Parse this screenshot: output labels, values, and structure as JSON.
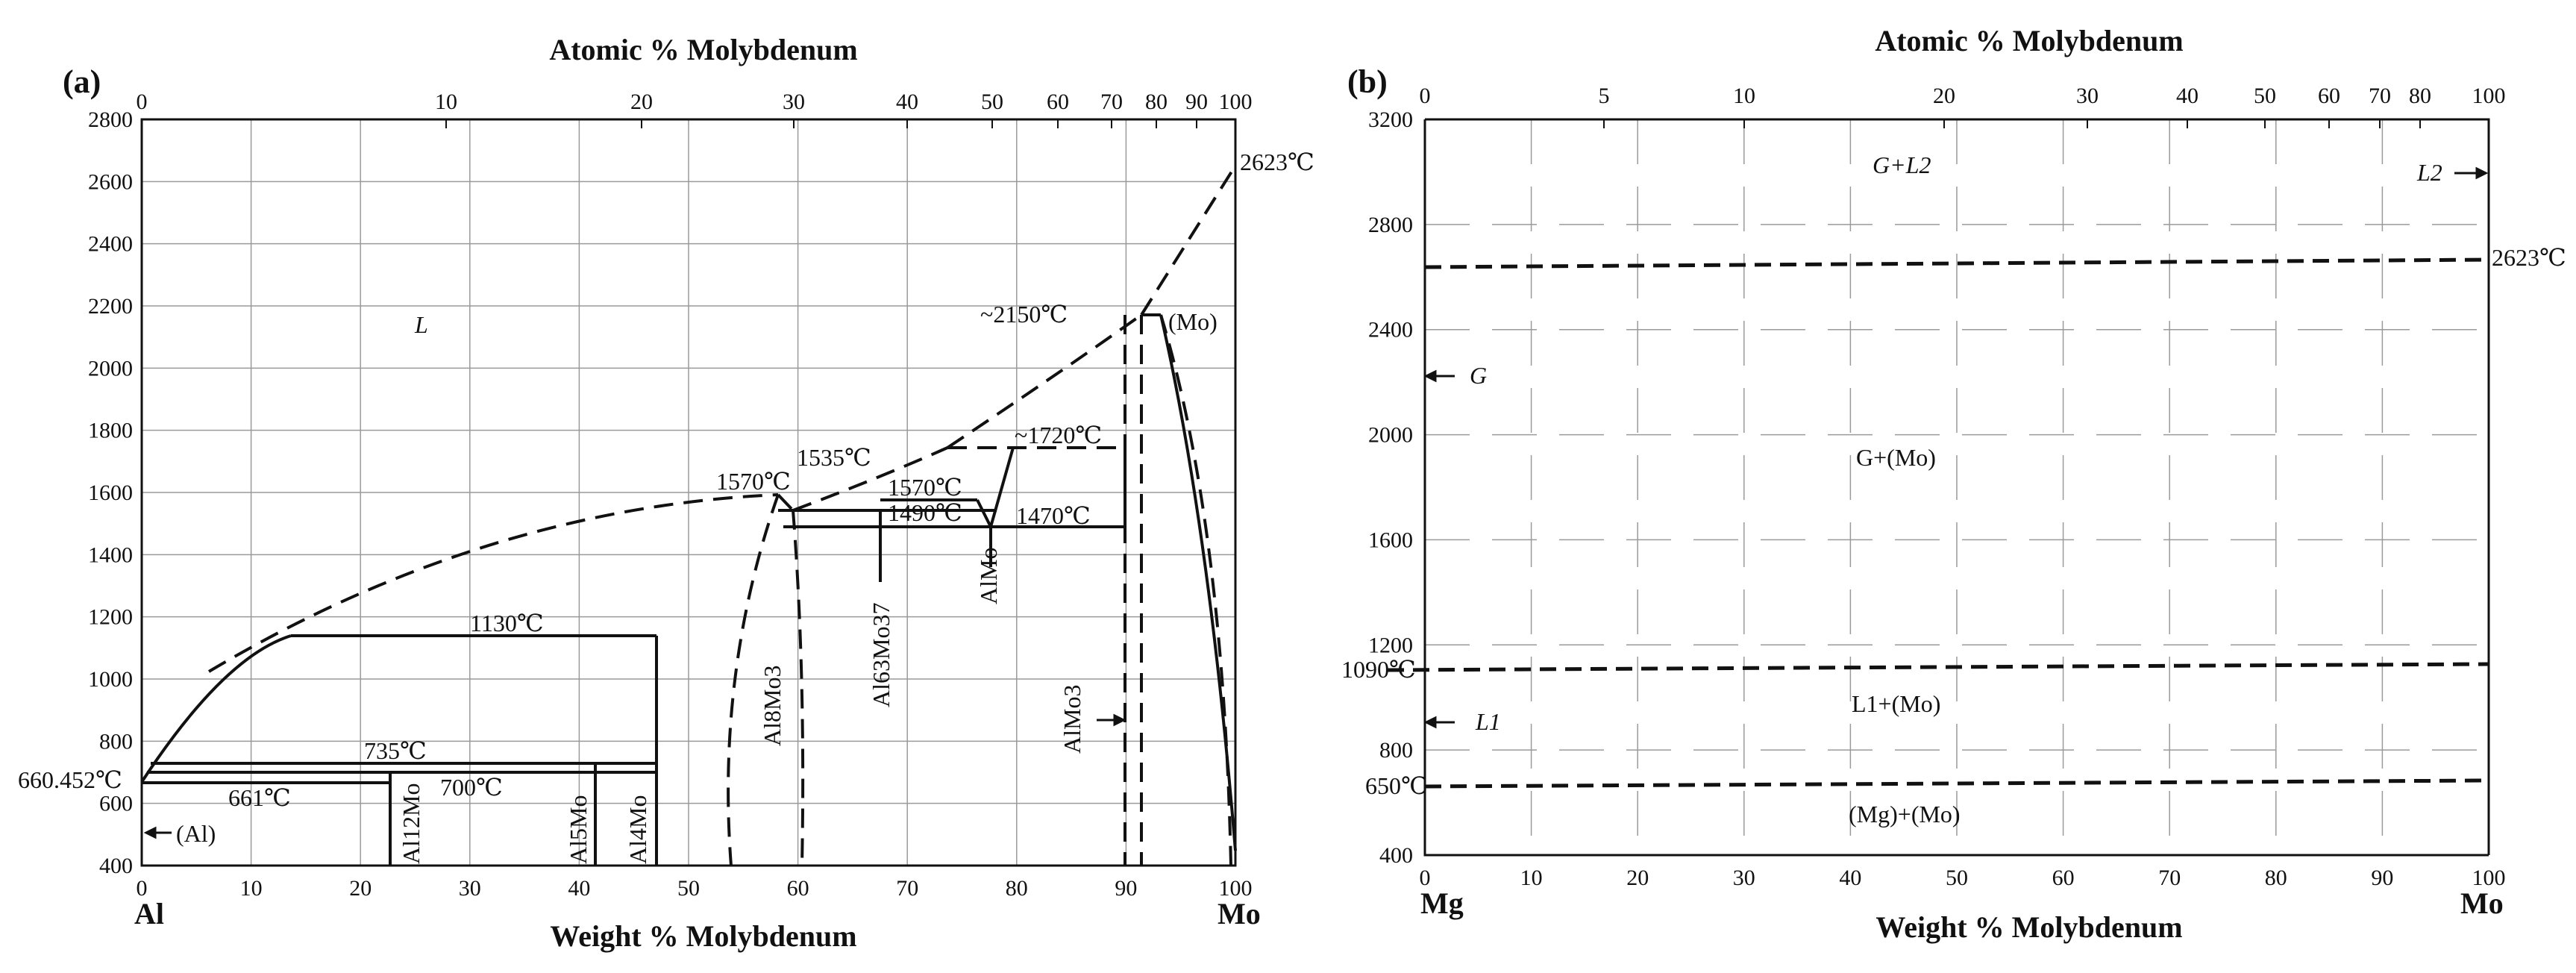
{
  "panel_a": {
    "panel_label": "(a)",
    "top_axis_title": "Atomic % Molybdenum",
    "bottom_axis_title": "Weight % Molybdenum",
    "left_element": "Al",
    "right_element": "Mo",
    "y_ticks": [
      "2800",
      "2600",
      "2400",
      "2200",
      "2000",
      "1800",
      "1600",
      "1400",
      "1200",
      "1000",
      "800",
      "600",
      "400"
    ],
    "x_ticks": [
      "0",
      "10",
      "20",
      "30",
      "40",
      "50",
      "60",
      "70",
      "80",
      "90",
      "100"
    ],
    "top_ticks": [
      "0",
      "10",
      "20",
      "30",
      "40",
      "50",
      "60",
      "70",
      "80",
      "90",
      "100"
    ],
    "labels": {
      "mo_melt": "2623℃",
      "al_melt": "660.452℃",
      "t2150": "~2150℃",
      "mo_phase": "(Mo)",
      "liquid": "L",
      "t1720": "~1720℃",
      "t1570a": "1570℃",
      "t1535": "1535℃",
      "t1570b": "1570℃",
      "t1490": "1490℃",
      "t1470": "1470℃",
      "t1130": "1130℃",
      "t735": "735℃",
      "t700": "700℃",
      "t661": "661℃",
      "al_phase": "(Al)",
      "al12mo": "Al12Mo",
      "al5mo": "Al5Mo",
      "al4mo": "Al4Mo",
      "al8mo3": "Al8Mo3",
      "al63mo37": "Al63Mo37",
      "almo": "AlMo",
      "almo3": "AlMo3"
    }
  },
  "panel_b": {
    "panel_label": "(b)",
    "top_axis_title": "Atomic % Molybdenum",
    "bottom_axis_title": "Weight % Molybdenum",
    "left_element": "Mg",
    "right_element": "Mo",
    "y_ticks": [
      "3200",
      "2800",
      "2400",
      "2000",
      "1600",
      "1200",
      "800",
      "400"
    ],
    "x_ticks": [
      "0",
      "10",
      "20",
      "30",
      "40",
      "50",
      "60",
      "70",
      "80",
      "90",
      "100"
    ],
    "top_ticks": [
      "0",
      "5",
      "10",
      "20",
      "30",
      "40",
      "50",
      "60",
      "70",
      "80",
      "100"
    ],
    "labels": {
      "g_l2": "G+L2",
      "l2": "L2",
      "t2623": "2623℃",
      "g": "G",
      "g_mo": "G+(Mo)",
      "t1090": "1090℃",
      "l1": "L1",
      "l1_mo": "L1+(Mo)",
      "t650": "650℃",
      "mg_mo": "(Mg)+(Mo)"
    }
  },
  "colors": {
    "ink": "#111111",
    "grid": "#9a9a9a",
    "background": "#ffffff"
  }
}
